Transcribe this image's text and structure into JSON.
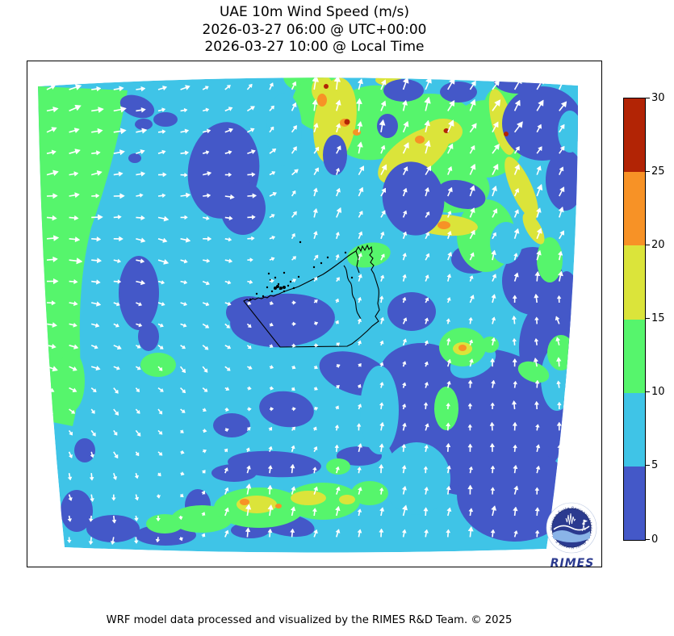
{
  "figure": {
    "title_line1": "UAE 10m Wind Speed (m/s)",
    "title_line2": "2026-03-27 06:00 @ UTC+00:00",
    "title_line3": "2026-03-27 10:00 @ Local Time",
    "footer_credit": "WRF model data processed and visualized by the RIMES R&D Team. © 2025"
  },
  "colorbar": {
    "unit": "m/s",
    "min": 0,
    "max": 30,
    "tick_labels": [
      "0",
      "5",
      "10",
      "15",
      "20",
      "25",
      "30"
    ],
    "tick_values": [
      0,
      5,
      10,
      15,
      20,
      25,
      30
    ],
    "segments": [
      {
        "range": [
          0,
          5
        ],
        "color": "#4458c8"
      },
      {
        "range": [
          5,
          10
        ],
        "color": "#3fc4e7"
      },
      {
        "range": [
          10,
          15
        ],
        "color": "#56f56c"
      },
      {
        "range": [
          15,
          20
        ],
        "color": "#dbe43a"
      },
      {
        "range": [
          20,
          25
        ],
        "color": "#f79226"
      },
      {
        "range": [
          25,
          30
        ],
        "color": "#b22405"
      }
    ]
  },
  "map": {
    "region": "UAE",
    "variable": "10m Wind Speed",
    "arrow_color": "#ffffff",
    "coastline_color": "#000000",
    "background_color": "#ffffff"
  },
  "logo": {
    "wordmark": "RIMES",
    "ring_text": "Regional Integrated Multi-Hazard Early Warning System",
    "primary_color": "#2b3a8f"
  }
}
